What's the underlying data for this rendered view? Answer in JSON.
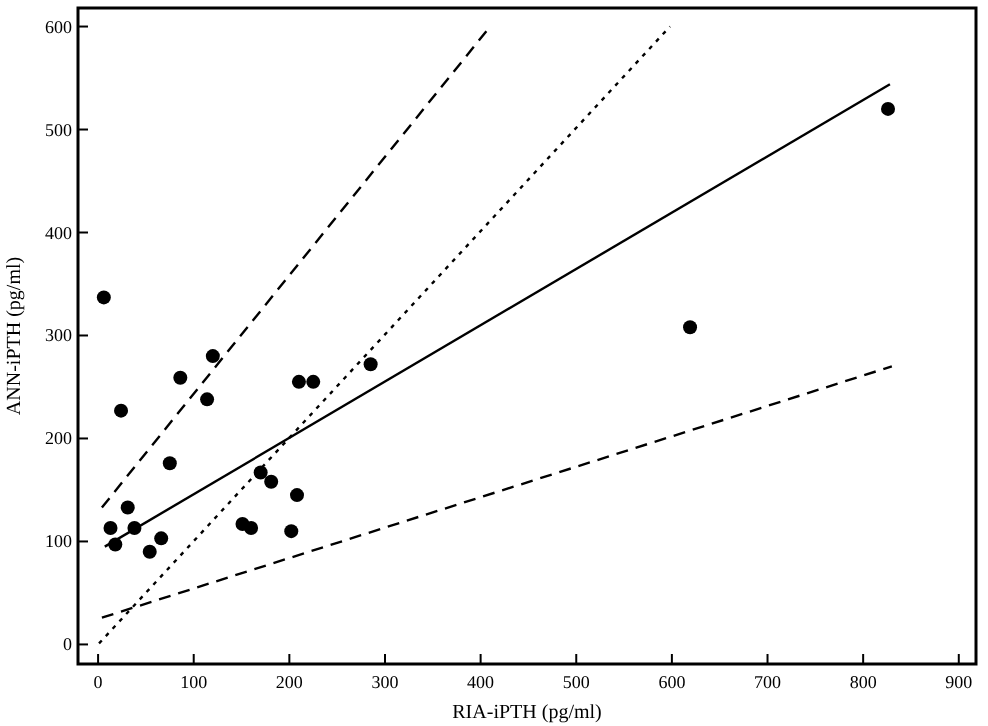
{
  "chart_data": {
    "type": "scatter",
    "xlabel": "RIA-iPTH (pg/ml)",
    "ylabel": "ANN-iPTH (pg/ml)",
    "xlim": [
      -21,
      918
    ],
    "ylim": [
      -19,
      618
    ],
    "xticks": [
      0,
      100,
      200,
      300,
      400,
      500,
      600,
      700,
      800,
      900
    ],
    "yticks": [
      0,
      100,
      200,
      300,
      400,
      500,
      600
    ],
    "grid": false,
    "series": [
      {
        "color": "#000000",
        "marker": "circle",
        "x": [
          6,
          13,
          18,
          24,
          31,
          38,
          54,
          66,
          75,
          86,
          114,
          120,
          151,
          160,
          170,
          181,
          202,
          208,
          210,
          225,
          285,
          619,
          826
        ],
        "values": [
          337,
          113,
          97,
          227,
          133,
          113,
          90,
          103,
          176,
          259,
          238,
          280,
          117,
          113,
          167,
          158,
          110,
          145,
          255,
          255,
          272,
          308,
          520
        ]
      },
      {
        "type": "line",
        "color": "#000000",
        "marker": "none",
        "line_style": "solid",
        "x": [
          7,
          828
        ],
        "values": [
          95,
          544
        ]
      },
      {
        "type": "line",
        "color": "#000000",
        "marker": "none",
        "line_style": "dashed",
        "x": [
          4,
          410
        ],
        "values": [
          133,
          600
        ]
      },
      {
        "type": "line",
        "color": "#000000",
        "marker": "none",
        "line_style": "dotted",
        "x": [
          1,
          598
        ],
        "values": [
          1,
          600
        ]
      },
      {
        "type": "line",
        "color": "#000000",
        "marker": "none",
        "line_style": "dashed",
        "x": [
          4,
          830
        ],
        "values": [
          26,
          270
        ]
      }
    ]
  }
}
